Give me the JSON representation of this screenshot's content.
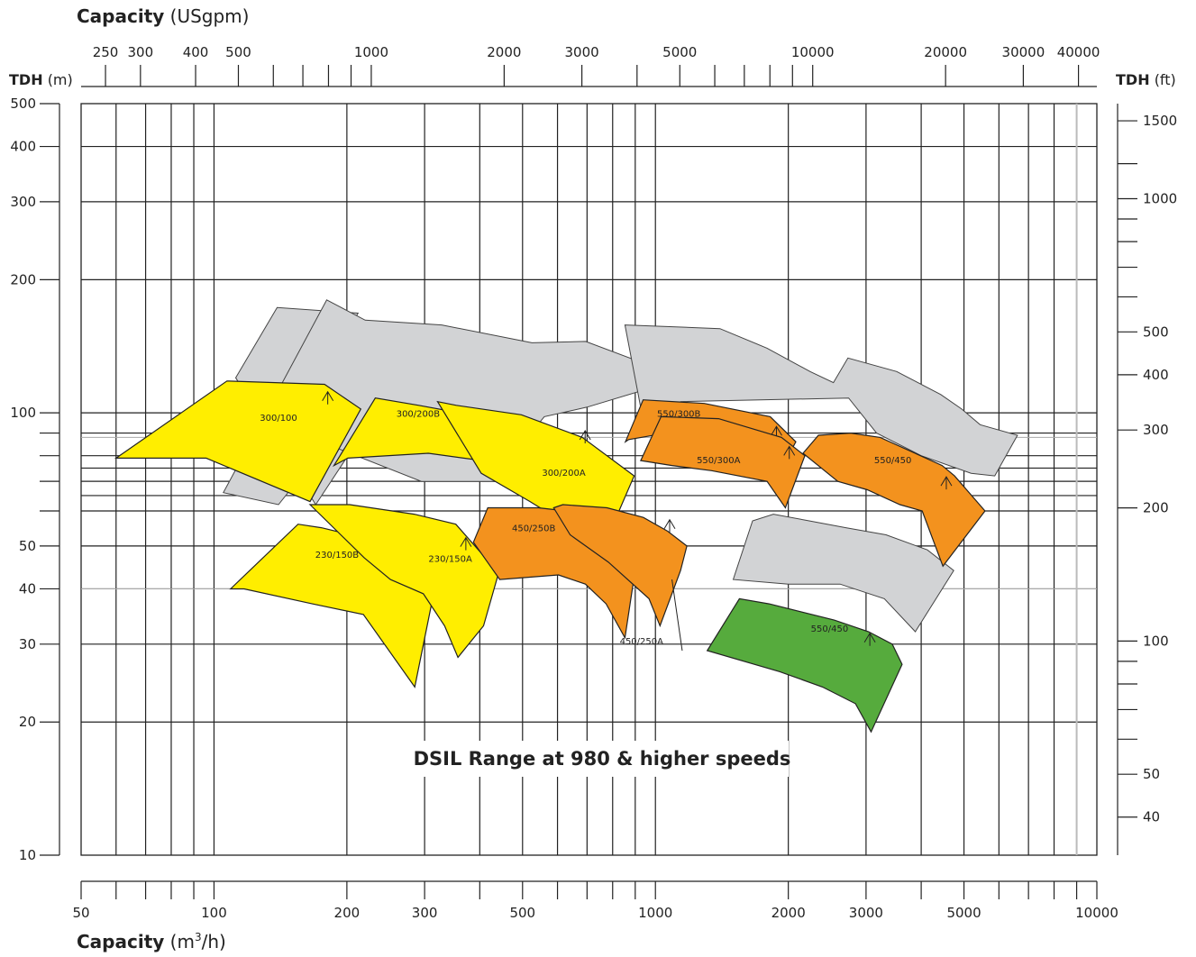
{
  "chart_data": {
    "type": "area",
    "title": "DSIL Range at 980 & higher speeds",
    "top_axis": {
      "label_bold": "Capacity",
      "label_unit": "(USgpm)",
      "ticks": [
        "250",
        "300",
        "400",
        "500",
        "1000",
        "2000",
        "3000",
        "5000",
        "10000",
        "20000",
        "30000",
        "40000"
      ],
      "tick_values": [
        250,
        300,
        400,
        500,
        1000,
        2000,
        3000,
        5000,
        10000,
        20000,
        30000,
        40000
      ],
      "minor_values": [
        600,
        700,
        800,
        900,
        4000,
        6000,
        7000,
        8000,
        9000
      ],
      "scale": "log"
    },
    "bottom_axis": {
      "label_bold": "Capacity",
      "label_unit": "(m",
      "label_sup": "3",
      "label_tail": "/h)",
      "ticks": [
        "50",
        "100",
        "200",
        "300",
        "500",
        "1000",
        "2000",
        "3000",
        "5000",
        "10000"
      ],
      "tick_values": [
        50,
        100,
        200,
        300,
        500,
        1000,
        2000,
        3000,
        5000,
        10000
      ],
      "minor_values": [
        60,
        70,
        80,
        90,
        400,
        600,
        700,
        800,
        900,
        4000,
        6000,
        7000,
        8000,
        9000
      ],
      "xlim": [
        50,
        10000
      ],
      "scale": "log"
    },
    "left_axis": {
      "label_bold": "TDH",
      "label_unit": "(m)",
      "ticks": [
        "500",
        "400",
        "300",
        "200",
        "100",
        "50",
        "40",
        "30",
        "20",
        "10"
      ],
      "tick_values": [
        500,
        400,
        300,
        200,
        100,
        50,
        40,
        30,
        20,
        10
      ],
      "minor_values": [
        90,
        80,
        70,
        60
      ],
      "ylim": [
        10,
        500
      ],
      "scale": "log"
    },
    "right_axis": {
      "label_bold": "TDH",
      "label_unit": "(ft)",
      "ticks": [
        "1500",
        "1000",
        "500",
        "400",
        "300",
        "200",
        "100",
        "50",
        "40"
      ],
      "tick_values": [
        1500,
        1000,
        500,
        400,
        300,
        200,
        100,
        50,
        40
      ],
      "minor_values": [
        1200,
        900,
        800,
        700,
        600,
        90,
        80,
        70,
        60
      ],
      "scale": "log"
    },
    "colors": {
      "yellow": "#ffee00",
      "orange": "#f3921e",
      "green": "#56ab3d",
      "gray": "#d2d3d5",
      "grid": "#222222"
    },
    "gray_regions": [
      {
        "points": [
          [
            112,
            120
          ],
          [
            139,
            173
          ],
          [
            212,
            168
          ],
          [
            165,
            108
          ],
          [
            206,
            83
          ],
          [
            170,
            62
          ]
        ]
      },
      {
        "points": [
          [
            113,
            98
          ],
          [
            120,
            73
          ],
          [
            122,
            64
          ],
          [
            100,
            96
          ]
        ]
      },
      {
        "points": [
          [
            180,
            180
          ],
          [
            220,
            162
          ],
          [
            328,
            158
          ],
          [
            525,
            144
          ],
          [
            695,
            145
          ],
          [
            970,
            128
          ],
          [
            925,
            112
          ],
          [
            700,
            103
          ],
          [
            560,
            98
          ],
          [
            450,
            75
          ],
          [
            450,
            70
          ],
          [
            295,
            70
          ],
          [
            180,
            85
          ],
          [
            140,
            62
          ],
          [
            105,
            66
          ]
        ]
      },
      {
        "points": [
          [
            853,
            158
          ],
          [
            1400,
            155
          ],
          [
            1790,
            140
          ],
          [
            2240,
            124
          ],
          [
            2530,
            117
          ],
          [
            2730,
            133
          ],
          [
            3520,
            124
          ],
          [
            4430,
            110
          ],
          [
            4940,
            102
          ],
          [
            5440,
            94
          ],
          [
            6610,
            89
          ],
          [
            5870,
            72
          ],
          [
            5190,
            73
          ],
          [
            4000,
            80
          ],
          [
            3170,
            90
          ],
          [
            2740,
            108
          ],
          [
            1140,
            106
          ],
          [
            1000,
            95
          ],
          [
            950,
            90
          ]
        ]
      },
      {
        "points": [
          [
            1500,
            42
          ],
          [
            1660,
            57
          ],
          [
            1850,
            59
          ],
          [
            2230,
            57
          ],
          [
            2700,
            55
          ],
          [
            3330,
            53
          ],
          [
            4130,
            49
          ],
          [
            4740,
            44
          ],
          [
            3880,
            32
          ],
          [
            3300,
            38
          ],
          [
            2620,
            41
          ],
          [
            2000,
            41
          ]
        ]
      }
    ],
    "regions": [
      {
        "name": "300/100",
        "color": "yellow",
        "points": [
          [
            60,
            79
          ],
          [
            107,
            118
          ],
          [
            178,
            116
          ],
          [
            215,
            102
          ],
          [
            165,
            63
          ],
          [
            96,
            79
          ]
        ],
        "label_at": [
          140,
          96
        ],
        "bep": [
          181,
          109
        ]
      },
      {
        "name": "300/200B",
        "color": "yellow",
        "points": [
          [
            187,
            76
          ],
          [
            232,
            108
          ],
          [
            291,
            104
          ],
          [
            424,
            97
          ],
          [
            563,
            86
          ],
          [
            664,
            72
          ],
          [
            630,
            60
          ],
          [
            542,
            71
          ],
          [
            444,
            77
          ],
          [
            306,
            81
          ],
          [
            201,
            79
          ]
        ],
        "label_at": [
          290,
          98
        ],
        "bep": [
          528,
          89
        ]
      },
      {
        "name": "300/200A",
        "color": "yellow",
        "points": [
          [
            403,
            73
          ],
          [
            321,
            106
          ],
          [
            354,
            104
          ],
          [
            497,
            99
          ],
          [
            683,
            88
          ],
          [
            895,
            72
          ],
          [
            815,
            58
          ],
          [
            612,
            57
          ],
          [
            520,
            63
          ]
        ],
        "label_at": [
          620,
          72
        ],
        "bep": [
          693,
          89
        ]
      },
      {
        "name": "230/150B",
        "color": "yellow",
        "points": [
          [
            109,
            40
          ],
          [
            155,
            56
          ],
          [
            175,
            55
          ],
          [
            221,
            52
          ],
          [
            252,
            49
          ],
          [
            280,
            46
          ],
          [
            316,
            40
          ],
          [
            285,
            24
          ],
          [
            218,
            35
          ],
          [
            167,
            37
          ],
          [
            117,
            40
          ]
        ],
        "label_at": [
          190,
          47
        ],
        "bep": [
          274,
          47
        ]
      },
      {
        "name": "230/150A",
        "color": "yellow",
        "points": [
          [
            219,
            47
          ],
          [
            165,
            62
          ],
          [
            203,
            62
          ],
          [
            284,
            59
          ],
          [
            353,
            56
          ],
          [
            412,
            47
          ],
          [
            440,
            43
          ],
          [
            408,
            33
          ],
          [
            357,
            28
          ],
          [
            333,
            33
          ],
          [
            298,
            39
          ],
          [
            251,
            42
          ]
        ],
        "label_at": [
          343,
          46
        ],
        "bep": [
          372,
          51
        ]
      },
      {
        "name": "450/250B",
        "color": "orange",
        "points": [
          [
            387,
            51
          ],
          [
            417,
            61
          ],
          [
            543,
            61
          ],
          [
            627,
            60
          ],
          [
            740,
            54
          ],
          [
            873,
            48
          ],
          [
            890,
            41
          ],
          [
            853,
            31
          ],
          [
            773,
            37
          ],
          [
            694,
            41
          ],
          [
            603,
            43
          ],
          [
            444,
            42
          ]
        ],
        "label_at": [
          530,
          54
        ],
        "bep": [
          743,
          55
        ]
      },
      {
        "name": "450/250A",
        "color": "orange",
        "points": [
          [
            588,
            61
          ],
          [
            617,
            62
          ],
          [
            777,
            61
          ],
          [
            939,
            58
          ],
          [
            1066,
            54
          ],
          [
            1178,
            50
          ],
          [
            1140,
            44
          ],
          [
            1024,
            33
          ],
          [
            967,
            38
          ],
          [
            782,
            46
          ],
          [
            641,
            53
          ]
        ],
        "label_at": [
          930,
          30
        ],
        "bep": [
          1077,
          56
        ],
        "pointer": [
          [
            1090,
            42
          ],
          [
            1150,
            29
          ]
        ]
      },
      {
        "name": "550/300B",
        "color": "orange",
        "points": [
          [
            855,
            86
          ],
          [
            938,
            107
          ],
          [
            1290,
            105
          ],
          [
            1820,
            98
          ],
          [
            2080,
            86
          ],
          [
            1960,
            77
          ],
          [
            1920,
            82
          ],
          [
            1130,
            91
          ],
          [
            870,
            87
          ]
        ],
        "label_at": [
          1130,
          98
        ],
        "bep": [
          1880,
          91
        ]
      },
      {
        "name": "550/300A",
        "color": "orange",
        "points": [
          [
            926,
            78
          ],
          [
            1030,
            98
          ],
          [
            1390,
            97
          ],
          [
            1930,
            88
          ],
          [
            2180,
            80
          ],
          [
            1970,
            61
          ],
          [
            1790,
            70
          ],
          [
            1340,
            74
          ],
          [
            1090,
            76
          ]
        ],
        "label_at": [
          1390,
          77
        ],
        "bep": [
          2010,
          82
        ]
      },
      {
        "name": "550/450",
        "color": "orange",
        "points": [
          [
            2160,
            81
          ],
          [
            2340,
            89
          ],
          [
            2770,
            90
          ],
          [
            3230,
            88
          ],
          [
            4460,
            76
          ],
          [
            4760,
            72
          ],
          [
            5580,
            60
          ],
          [
            4480,
            45
          ],
          [
            4020,
            60
          ],
          [
            3580,
            62
          ],
          [
            3020,
            67
          ],
          [
            2590,
            70
          ]
        ],
        "label_at": [
          3450,
          77
        ],
        "bep": [
          4560,
          70
        ]
      },
      {
        "name": "550/450",
        "color": "green",
        "points": [
          [
            1310,
            29
          ],
          [
            1550,
            38
          ],
          [
            1810,
            37
          ],
          [
            2540,
            34
          ],
          [
            3040,
            32
          ],
          [
            3440,
            30
          ],
          [
            3620,
            27
          ],
          [
            3080,
            19
          ],
          [
            2840,
            22
          ],
          [
            2390,
            24
          ],
          [
            1910,
            26
          ]
        ],
        "label_at": [
          2480,
          32
        ],
        "bep": [
          3060,
          31
        ]
      }
    ],
    "ref_lines_y": [
      88,
      40
    ]
  }
}
